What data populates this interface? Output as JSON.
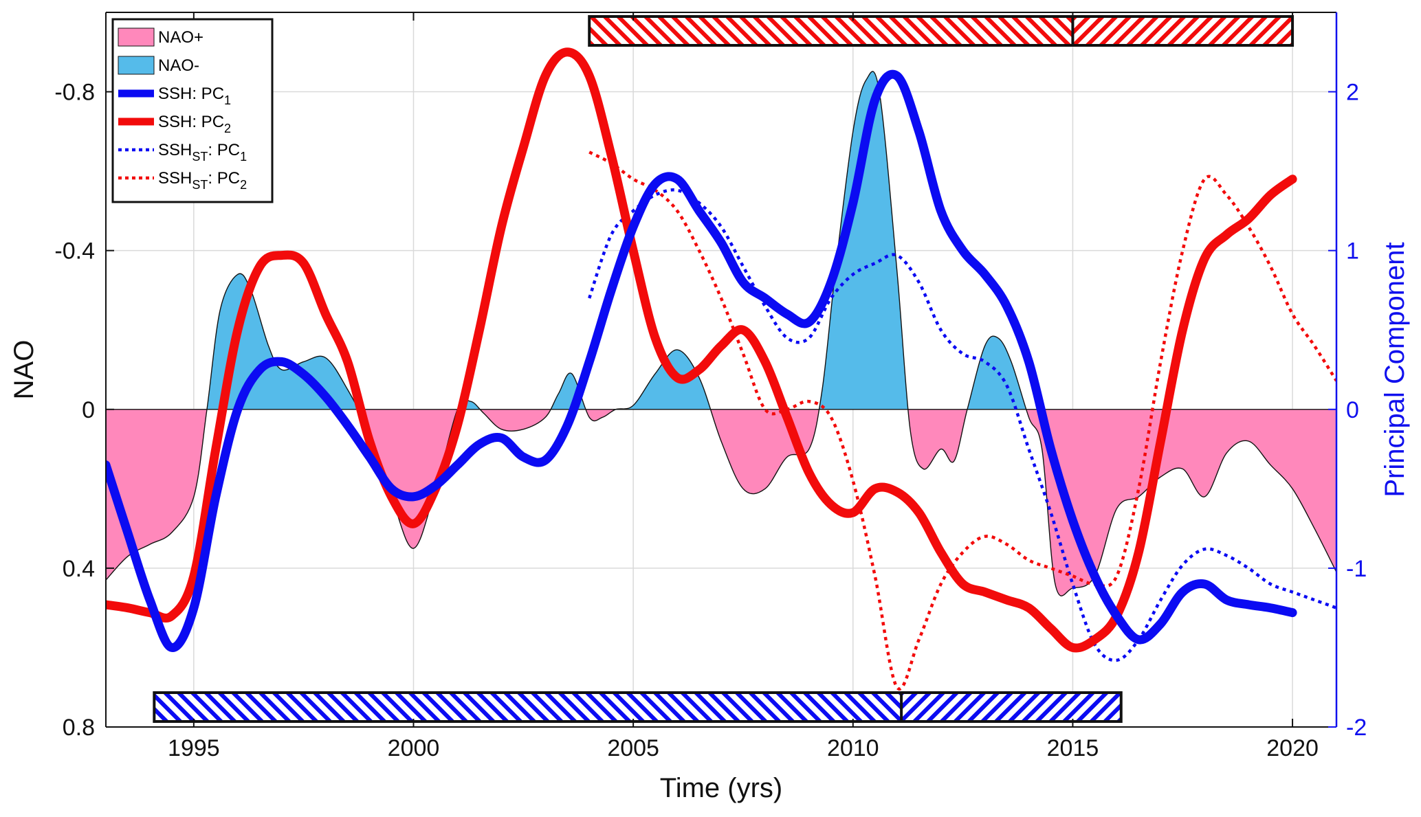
{
  "chart_data": {
    "type": "line",
    "xlabel": "Time (yrs)",
    "ylabel_left": "NAO",
    "ylabel_right": "Principal Component",
    "xlim": [
      1993,
      2021
    ],
    "ylim_left_reversed": [
      -1.0,
      0.8
    ],
    "ylim_right": [
      -2,
      2.5
    ],
    "x_ticks": [
      1995,
      2000,
      2005,
      2010,
      2015,
      2020
    ],
    "y_ticks_left": [
      {
        "value": -0.8,
        "label": "-0.8"
      },
      {
        "value": -0.4,
        "label": "-0.4"
      },
      {
        "value": 0,
        "label": "0"
      },
      {
        "value": 0.4,
        "label": "0.4"
      },
      {
        "value": 0.8,
        "label": "0.8"
      }
    ],
    "y_ticks_right": [
      {
        "value": 2,
        "label": "2"
      },
      {
        "value": 1,
        "label": "1"
      },
      {
        "value": 0,
        "label": "0"
      },
      {
        "value": -1,
        "label": "-1"
      },
      {
        "value": -2,
        "label": "-2"
      }
    ],
    "grid": true,
    "legend_position": "top-left",
    "nao_area": {
      "x": [
        1993.0,
        1993.5,
        1994.0,
        1994.5,
        1995.0,
        1995.3,
        1995.6,
        1996.0,
        1996.3,
        1996.7,
        1997.0,
        1997.5,
        1998.0,
        1998.5,
        1999.0,
        1999.5,
        2000.0,
        2000.5,
        2001.0,
        2001.3,
        2001.6,
        2002.0,
        2002.5,
        2003.0,
        2003.3,
        2003.6,
        2004.0,
        2004.3,
        2004.6,
        2005.0,
        2005.5,
        2006.0,
        2006.5,
        2007.0,
        2007.5,
        2008.0,
        2008.5,
        2009.0,
        2009.3,
        2009.6,
        2010.0,
        2010.3,
        2010.6,
        2011.0,
        2011.3,
        2011.6,
        2012.0,
        2012.3,
        2012.6,
        2013.0,
        2013.3,
        2013.6,
        2014.0,
        2014.3,
        2014.6,
        2015.0,
        2015.5,
        2016.0,
        2016.5,
        2017.0,
        2017.5,
        2018.0,
        2018.5,
        2019.0,
        2019.5,
        2020.0,
        2020.5,
        2021.0
      ],
      "y": [
        0.43,
        0.37,
        0.34,
        0.31,
        0.22,
        0.0,
        -0.25,
        -0.34,
        -0.3,
        -0.16,
        -0.1,
        -0.12,
        -0.13,
        -0.05,
        0.06,
        0.22,
        0.35,
        0.2,
        0.0,
        -0.02,
        0.01,
        0.05,
        0.05,
        0.02,
        -0.04,
        -0.09,
        0.02,
        0.02,
        0.0,
        -0.01,
        -0.09,
        -0.15,
        -0.08,
        0.08,
        0.2,
        0.2,
        0.12,
        0.1,
        -0.05,
        -0.35,
        -0.7,
        -0.83,
        -0.8,
        -0.35,
        0.05,
        0.15,
        0.1,
        0.13,
        0.0,
        -0.16,
        -0.18,
        -0.12,
        0.02,
        0.1,
        0.44,
        0.45,
        0.42,
        0.25,
        0.22,
        0.17,
        0.15,
        0.22,
        0.11,
        0.08,
        0.14,
        0.2,
        0.3,
        0.41
      ]
    },
    "series": [
      {
        "name": "SSH: PC1",
        "axis": "right",
        "style": "solid",
        "color": "#0b0bf2",
        "x": [
          1993.0,
          1993.5,
          1994.0,
          1994.5,
          1995.0,
          1995.5,
          1996.0,
          1996.5,
          1997.0,
          1997.5,
          1998.0,
          1998.5,
          1999.0,
          1999.5,
          2000.0,
          2000.5,
          2001.0,
          2001.5,
          2002.0,
          2002.5,
          2003.0,
          2003.5,
          2004.0,
          2004.5,
          2005.0,
          2005.5,
          2006.0,
          2006.5,
          2007.0,
          2007.5,
          2008.0,
          2008.5,
          2009.0,
          2009.5,
          2010.0,
          2010.5,
          2011.0,
          2011.5,
          2012.0,
          2012.5,
          2013.0,
          2013.5,
          2014.0,
          2014.5,
          2015.0,
          2015.5,
          2016.0,
          2016.5,
          2017.0,
          2017.5,
          2018.0,
          2018.5,
          2019.0,
          2019.5,
          2020.0
        ],
        "y": [
          -0.35,
          -0.78,
          -1.2,
          -1.5,
          -1.25,
          -0.55,
          0.0,
          0.25,
          0.3,
          0.22,
          0.08,
          -0.1,
          -0.3,
          -0.5,
          -0.55,
          -0.48,
          -0.35,
          -0.22,
          -0.18,
          -0.3,
          -0.32,
          -0.1,
          0.3,
          0.75,
          1.15,
          1.42,
          1.45,
          1.25,
          1.05,
          0.8,
          0.7,
          0.6,
          0.55,
          0.8,
          1.3,
          1.95,
          2.1,
          1.75,
          1.25,
          1.0,
          0.85,
          0.65,
          0.3,
          -0.25,
          -0.7,
          -1.05,
          -1.3,
          -1.45,
          -1.35,
          -1.15,
          -1.1,
          -1.2,
          -1.23,
          -1.25,
          -1.28
        ]
      },
      {
        "name": "SSH: PC2",
        "axis": "right",
        "style": "solid",
        "color": "#f20b0b",
        "x": [
          1993.0,
          1993.5,
          1994.0,
          1994.5,
          1995.0,
          1995.5,
          1996.0,
          1996.5,
          1997.0,
          1997.5,
          1998.0,
          1998.5,
          1999.0,
          1999.5,
          2000.0,
          2000.5,
          2001.0,
          2001.5,
          2002.0,
          2002.5,
          2003.0,
          2003.5,
          2004.0,
          2004.5,
          2005.0,
          2005.5,
          2006.0,
          2006.5,
          2007.0,
          2007.5,
          2008.0,
          2008.5,
          2009.0,
          2009.5,
          2010.0,
          2010.5,
          2011.0,
          2011.5,
          2012.0,
          2012.5,
          2013.0,
          2013.5,
          2014.0,
          2014.5,
          2015.0,
          2015.5,
          2016.0,
          2016.5,
          2017.0,
          2017.5,
          2018.0,
          2018.5,
          2019.0,
          2019.5,
          2020.0
        ],
        "y": [
          -1.23,
          -1.25,
          -1.28,
          -1.3,
          -1.05,
          -0.25,
          0.5,
          0.9,
          0.97,
          0.92,
          0.6,
          0.3,
          -0.2,
          -0.55,
          -0.72,
          -0.5,
          -0.1,
          0.5,
          1.15,
          1.65,
          2.1,
          2.25,
          2.1,
          1.6,
          1.0,
          0.45,
          0.2,
          0.25,
          0.4,
          0.5,
          0.3,
          -0.05,
          -0.4,
          -0.6,
          -0.65,
          -0.5,
          -0.52,
          -0.65,
          -0.9,
          -1.1,
          -1.15,
          -1.2,
          -1.25,
          -1.38,
          -1.5,
          -1.45,
          -1.3,
          -0.9,
          -0.2,
          0.5,
          0.95,
          1.1,
          1.2,
          1.35,
          1.45
        ]
      },
      {
        "name": "SSH_ST: PC1",
        "axis": "right",
        "style": "dotted",
        "color": "#0b0bf2",
        "x": [
          2004.0,
          2004.5,
          2005.0,
          2005.5,
          2006.0,
          2006.5,
          2007.0,
          2007.5,
          2008.0,
          2008.5,
          2009.0,
          2009.5,
          2010.0,
          2010.5,
          2011.0,
          2011.5,
          2012.0,
          2012.5,
          2013.0,
          2013.5,
          2014.0,
          2014.5,
          2015.0,
          2015.5,
          2016.0,
          2016.5,
          2017.0,
          2017.5,
          2018.0,
          2018.5,
          2019.0,
          2019.5,
          2020.0,
          2020.5,
          2021.0
        ],
        "y": [
          0.7,
          1.1,
          1.25,
          1.35,
          1.38,
          1.3,
          1.15,
          0.9,
          0.65,
          0.45,
          0.45,
          0.7,
          0.85,
          0.92,
          0.97,
          0.8,
          0.5,
          0.35,
          0.3,
          0.15,
          -0.25,
          -0.65,
          -1.1,
          -1.48,
          -1.58,
          -1.45,
          -1.2,
          -0.98,
          -0.88,
          -0.92,
          -1.0,
          -1.1,
          -1.15,
          -1.2,
          -1.25
        ]
      },
      {
        "name": "SSH_ST: PC2",
        "axis": "right",
        "style": "dotted",
        "color": "#f20b0b",
        "x": [
          2004.0,
          2004.5,
          2005.0,
          2005.5,
          2006.0,
          2006.5,
          2007.0,
          2007.5,
          2008.0,
          2008.5,
          2009.0,
          2009.5,
          2010.0,
          2010.5,
          2011.0,
          2011.5,
          2012.0,
          2012.5,
          2013.0,
          2013.5,
          2014.0,
          2014.5,
          2015.0,
          2015.5,
          2016.0,
          2016.5,
          2017.0,
          2017.5,
          2018.0,
          2018.5,
          2019.0,
          2019.5,
          2020.0,
          2020.5,
          2021.0
        ],
        "y": [
          1.62,
          1.55,
          1.45,
          1.38,
          1.25,
          1.0,
          0.7,
          0.35,
          0.0,
          0.0,
          0.05,
          -0.05,
          -0.45,
          -1.05,
          -1.75,
          -1.45,
          -1.1,
          -0.9,
          -0.8,
          -0.85,
          -0.95,
          -1.0,
          -1.05,
          -1.1,
          -1.05,
          -0.5,
          0.3,
          1.0,
          1.45,
          1.35,
          1.15,
          0.9,
          0.6,
          0.4,
          0.18
        ]
      }
    ],
    "legend": [
      {
        "label": "NAO+",
        "kind": "patch",
        "color": "#ff88bb"
      },
      {
        "label": "NAO-",
        "kind": "patch",
        "color": "#55bbea"
      },
      {
        "label": "SSH: PC",
        "sub": "1",
        "kind": "solid",
        "color": "#0b0bf2"
      },
      {
        "label": "SSH: PC",
        "sub": "2",
        "kind": "solid",
        "color": "#f20b0b"
      },
      {
        "label": "SSH",
        "sub": "ST",
        "label2": ": PC",
        "sub2": "1",
        "kind": "dotted",
        "color": "#0b0bf2"
      },
      {
        "label": "SSH",
        "sub": "ST",
        "label2": ": PC",
        "sub2": "2",
        "kind": "dotted",
        "color": "#f20b0b"
      }
    ],
    "period_bars": [
      {
        "color": "#f20b0b",
        "position": "top",
        "x_start": 2004.0,
        "x_split": 2015.0,
        "x_end": 2020.0
      },
      {
        "color": "#0b0bf2",
        "position": "bottom",
        "x_start": 1994.1,
        "x_split": 2011.1,
        "x_end": 2016.1
      }
    ]
  }
}
